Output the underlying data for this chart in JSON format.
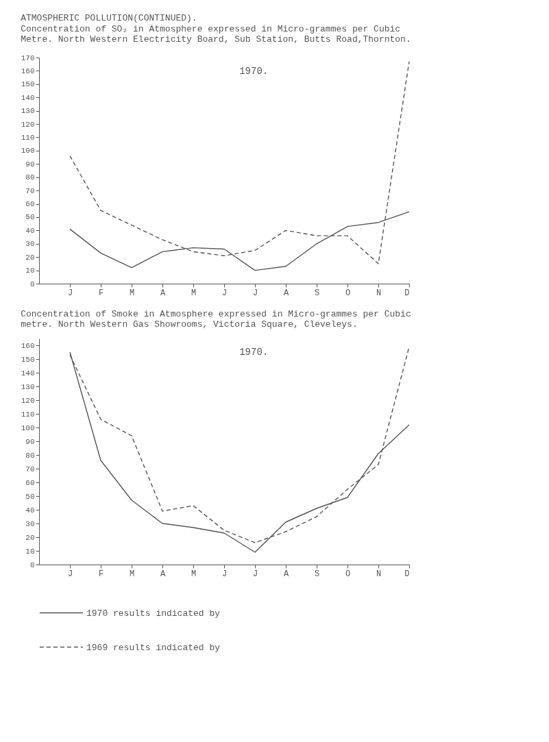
{
  "chart_data": [
    {
      "type": "line",
      "title": "ATMOSPHERIC POLLUTION(CONTINUED).",
      "subtitle": "Concentration of SO₂ in Atmosphere expressed in Micro-grammes per Cubic Metre. North Western Electricity Board, Sub Station, Butts Road,Thornton.",
      "annotations": [
        "1970."
      ],
      "categories": [
        "J",
        "F",
        "M",
        "A",
        "M",
        "J",
        "J",
        "A",
        "S",
        "O",
        "N",
        "D"
      ],
      "series": [
        {
          "name": "1970 results indicated by",
          "color": "#555555",
          "line_style": "solid",
          "values": [
            41,
            23,
            12,
            24,
            27,
            26,
            10,
            13,
            30,
            43,
            46,
            54
          ]
        },
        {
          "name": "1969 results indicated by",
          "color": "#555555",
          "line_style": "dashed",
          "values": [
            96,
            55,
            44,
            33,
            24,
            21,
            25,
            40,
            36,
            36,
            15,
            167
          ]
        }
      ],
      "ylim": [
        0,
        170
      ],
      "yticks": [
        0,
        10,
        20,
        30,
        40,
        50,
        60,
        70,
        80,
        90,
        100,
        110,
        120,
        130,
        140,
        150,
        160,
        170
      ],
      "grid": false,
      "legend": "bottom"
    },
    {
      "type": "line",
      "title": "Concentration of Smoke in Atmosphere expressed in Micro-grammes per Cubic metre. North Western Gas Showrooms, Victoria Square, Cleveleys.",
      "annotations": [
        "1970."
      ],
      "categories": [
        "J",
        "F",
        "M",
        "A",
        "M",
        "J",
        "J",
        "A",
        "S",
        "O",
        "N",
        "D"
      ],
      "series": [
        {
          "name": "1970 results indicated by",
          "color": "#555555",
          "line_style": "solid",
          "values": [
            155,
            76,
            47,
            30,
            27,
            23,
            9,
            31,
            41,
            49,
            81,
            102
          ]
        },
        {
          "name": "1969 results indicated by",
          "color": "#555555",
          "line_style": "dashed",
          "values": [
            153,
            106,
            94,
            39,
            43,
            25,
            16,
            24,
            35,
            55,
            73,
            159
          ]
        }
      ],
      "ylim": [
        0,
        165
      ],
      "yticks": [
        0,
        10,
        20,
        30,
        40,
        50,
        60,
        70,
        80,
        90,
        100,
        110,
        120,
        130,
        140,
        150,
        160
      ],
      "grid": false,
      "legend": "bottom"
    }
  ]
}
